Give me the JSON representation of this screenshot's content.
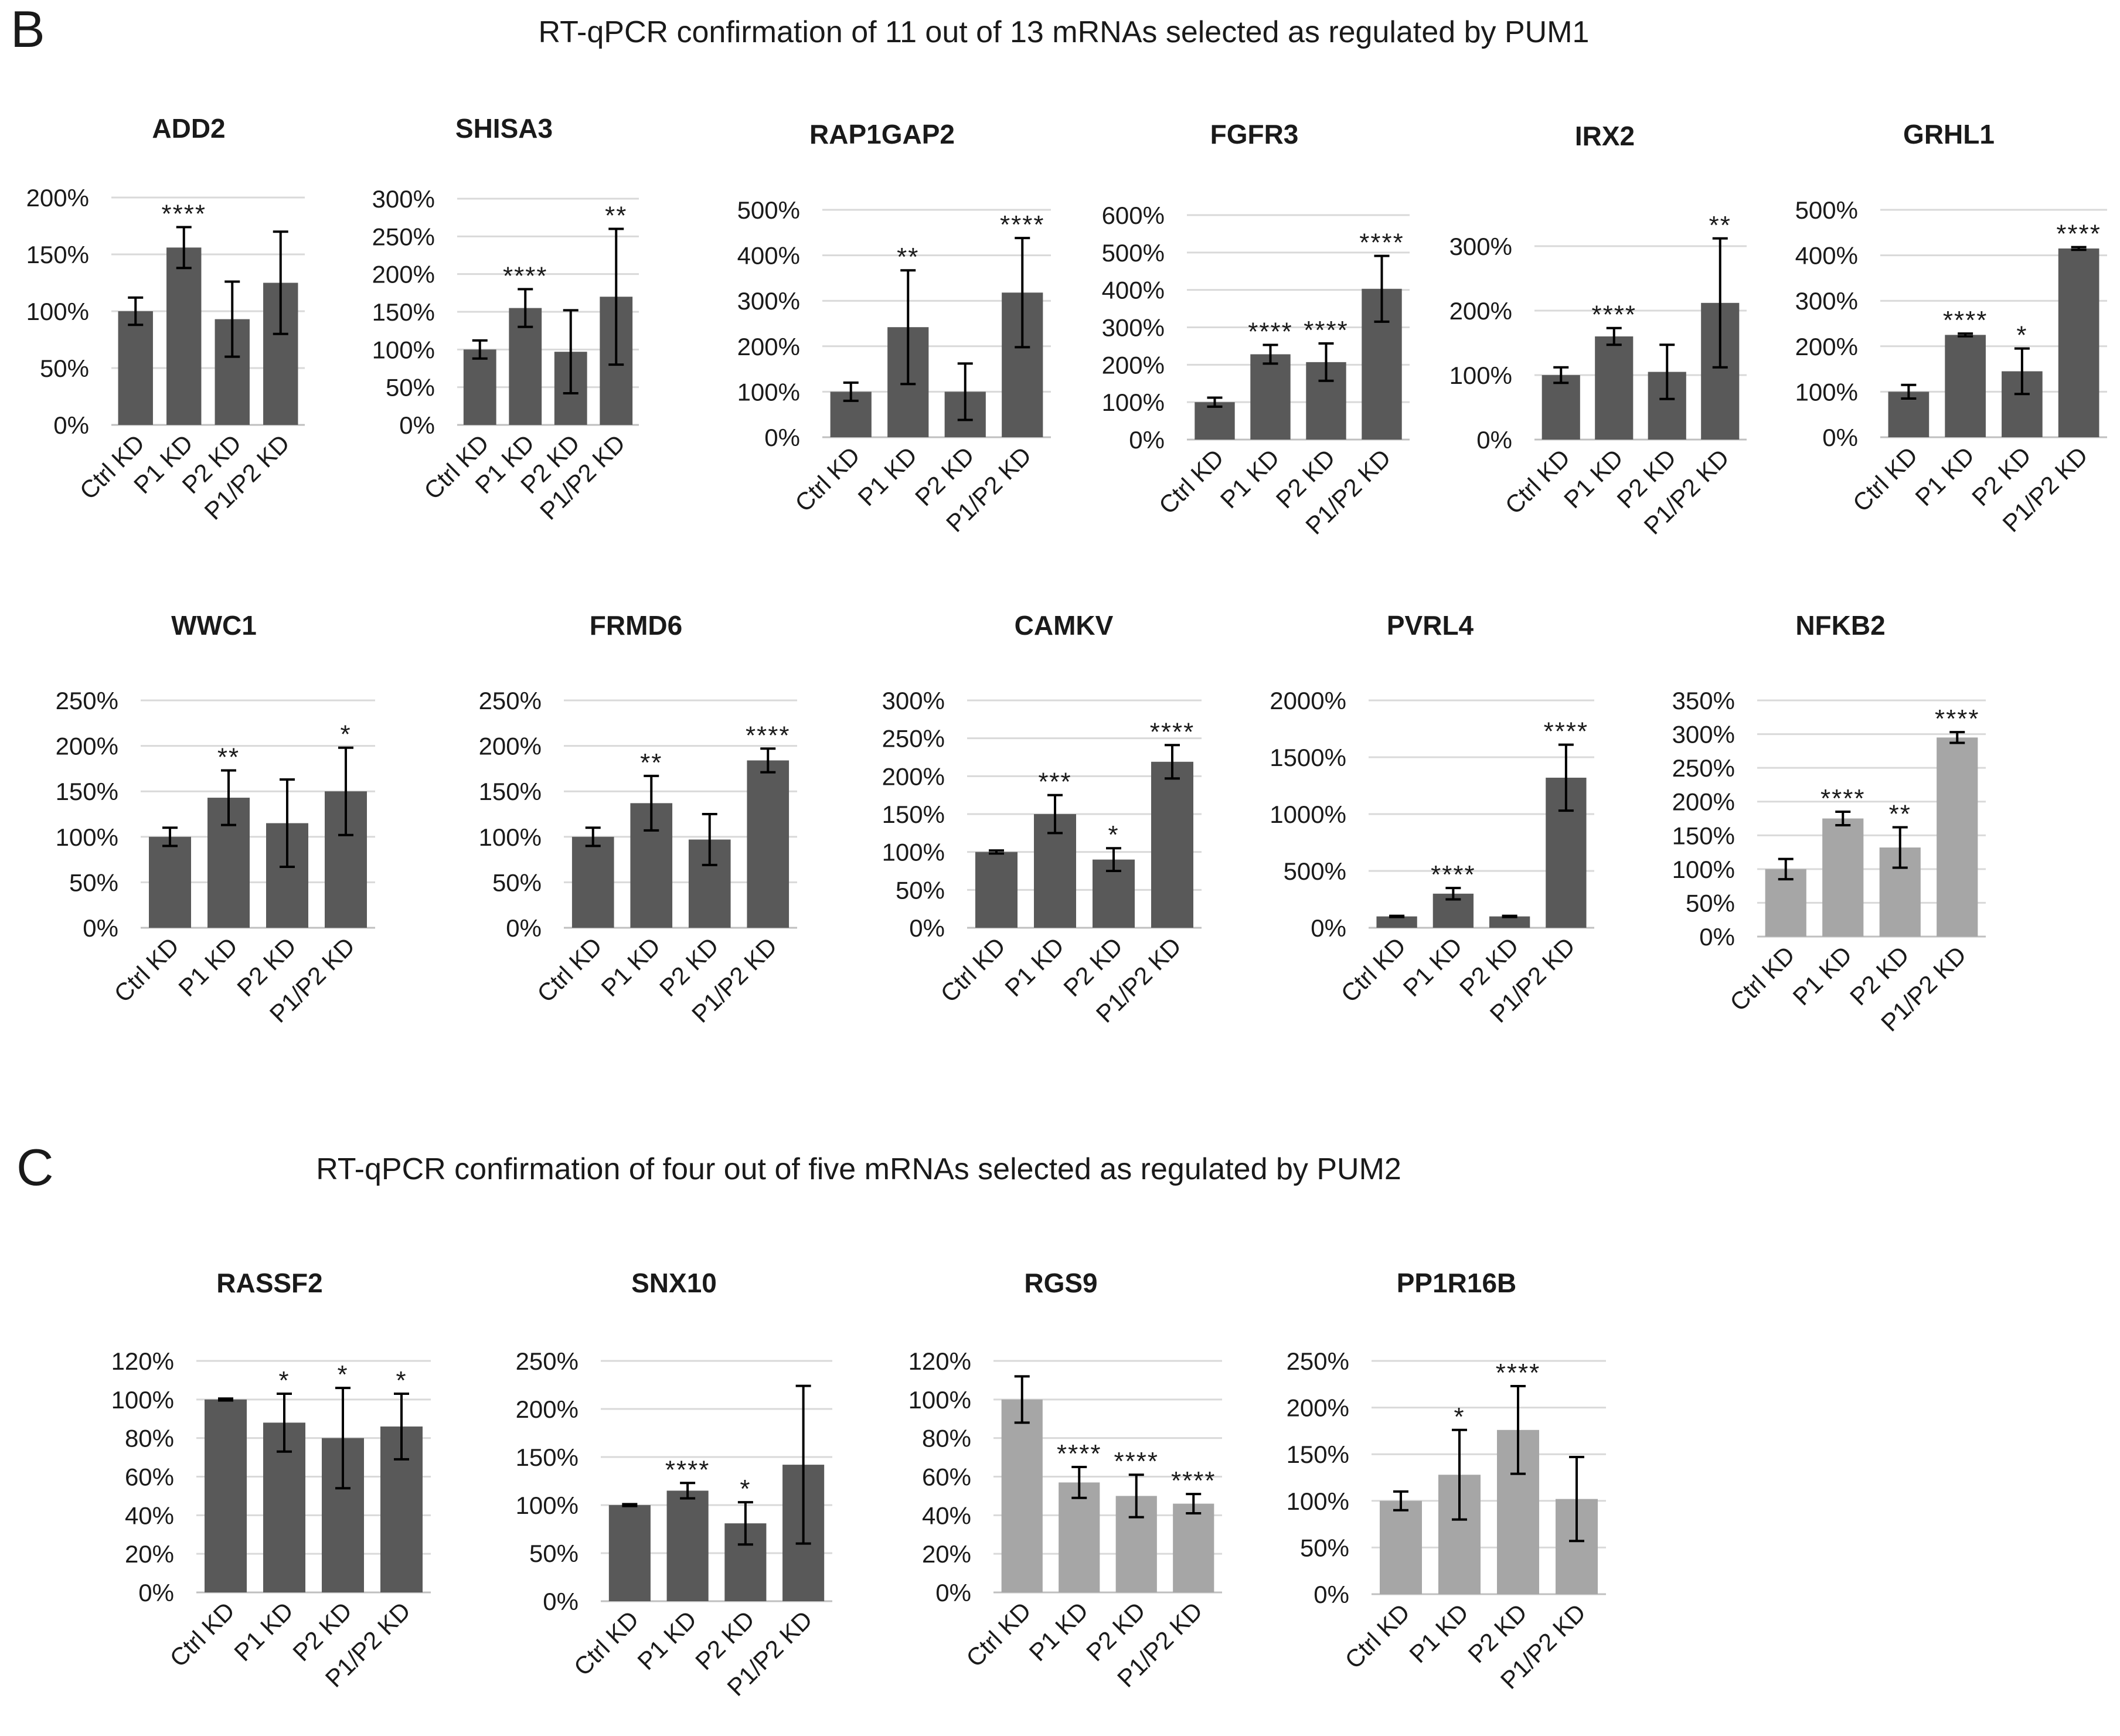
{
  "colors": {
    "dark_bar": "#595959",
    "light_bar": "#a6a6a6",
    "grid": "#d9d9d9",
    "axis": "#bfbfbf",
    "text": "#1a1a1a"
  },
  "categories": [
    "Ctrl KD",
    "P1 KD",
    "P2 KD",
    "P1/P2 KD"
  ],
  "panels": [
    {
      "letter": "B",
      "title": "RT-qPCR confirmation of 11 out of 13 mRNAs selected as regulated by PUM1"
    },
    {
      "letter": "C",
      "title": "RT-qPCR confirmation of four out of five mRNAs selected as regulated by PUM2"
    }
  ],
  "chart_data": [
    {
      "type": "bar",
      "panel": "B",
      "title": "ADD2",
      "color": "dark",
      "ylim": [
        0,
        200
      ],
      "ticks": [
        0,
        50,
        100,
        150,
        200
      ],
      "tick_labels": [
        "0%",
        "50%",
        "100%",
        "150%",
        "200%"
      ],
      "categories": [
        "Ctrl KD",
        "P1 KD",
        "P2 KD",
        "P1/P2 KD"
      ],
      "values": [
        100,
        156,
        93,
        125
      ],
      "errors": [
        12,
        18,
        33,
        45
      ],
      "sig": [
        "",
        "****",
        "",
        ""
      ]
    },
    {
      "type": "bar",
      "panel": "B",
      "title": "SHISA3",
      "color": "dark",
      "ylim": [
        0,
        300
      ],
      "ticks": [
        0,
        50,
        100,
        150,
        200,
        250,
        300
      ],
      "tick_labels": [
        "0%",
        "50%",
        "100%",
        "150%",
        "200%",
        "250%",
        "300%"
      ],
      "categories": [
        "Ctrl KD",
        "P1 KD",
        "P2 KD",
        "P1/P2 KD"
      ],
      "values": [
        100,
        155,
        97,
        170
      ],
      "errors": [
        12,
        25,
        55,
        90
      ],
      "sig": [
        "",
        "****",
        "",
        "**"
      ]
    },
    {
      "type": "bar",
      "panel": "B",
      "title": "RAP1GAP2",
      "color": "dark",
      "ylim": [
        0,
        500
      ],
      "ticks": [
        0,
        100,
        200,
        300,
        400,
        500
      ],
      "tick_labels": [
        "0%",
        "100%",
        "200%",
        "300%",
        "400%",
        "500%"
      ],
      "categories": [
        "Ctrl KD",
        "P1 KD",
        "P2 KD",
        "P1/P2 KD"
      ],
      "values": [
        100,
        242,
        100,
        318
      ],
      "errors": [
        20,
        125,
        62,
        120
      ],
      "sig": [
        "",
        "**",
        "",
        "****"
      ]
    },
    {
      "type": "bar",
      "panel": "B",
      "title": "FGFR3",
      "color": "dark",
      "ylim": [
        0,
        600
      ],
      "ticks": [
        0,
        100,
        200,
        300,
        400,
        500,
        600
      ],
      "tick_labels": [
        "0%",
        "100%",
        "200%",
        "300%",
        "400%",
        "500%",
        "600%"
      ],
      "categories": [
        "Ctrl KD",
        "P1 KD",
        "P2 KD",
        "P1/P2 KD"
      ],
      "values": [
        100,
        228,
        207,
        403
      ],
      "errors": [
        12,
        25,
        50,
        88
      ],
      "sig": [
        "",
        "****",
        "****",
        "****"
      ]
    },
    {
      "type": "bar",
      "panel": "B",
      "title": "IRX2",
      "color": "dark",
      "ylim": [
        0,
        300
      ],
      "ticks": [
        0,
        100,
        200,
        300
      ],
      "tick_labels": [
        "0%",
        "100%",
        "200%",
        "300%"
      ],
      "categories": [
        "Ctrl KD",
        "P1 KD",
        "P2 KD",
        "P1/P2 KD"
      ],
      "values": [
        100,
        160,
        105,
        212
      ],
      "errors": [
        12,
        13,
        42,
        100
      ],
      "sig": [
        "",
        "****",
        "",
        "**"
      ]
    },
    {
      "type": "bar",
      "panel": "B",
      "title": "GRHL1",
      "color": "dark",
      "ylim": [
        0,
        500
      ],
      "ticks": [
        0,
        100,
        200,
        300,
        400,
        500
      ],
      "tick_labels": [
        "0%",
        "100%",
        "200%",
        "300%",
        "400%",
        "500%"
      ],
      "categories": [
        "Ctrl KD",
        "P1 KD",
        "P2 KD",
        "P1/P2 KD"
      ],
      "values": [
        100,
        225,
        145,
        415
      ],
      "errors": [
        15,
        3,
        50,
        3
      ],
      "sig": [
        "",
        "****",
        "*",
        "****"
      ]
    },
    {
      "type": "bar",
      "panel": "B",
      "title": "WWC1",
      "color": "dark",
      "ylim": [
        0,
        250
      ],
      "ticks": [
        0,
        50,
        100,
        150,
        200,
        250
      ],
      "tick_labels": [
        "0%",
        "50%",
        "100%",
        "150%",
        "200%",
        "250%"
      ],
      "categories": [
        "Ctrl KD",
        "P1 KD",
        "P2 KD",
        "P1/P2 KD"
      ],
      "values": [
        100,
        143,
        115,
        150
      ],
      "errors": [
        10,
        30,
        48,
        48
      ],
      "sig": [
        "",
        "**",
        "",
        "*"
      ]
    },
    {
      "type": "bar",
      "panel": "B",
      "title": "FRMD6",
      "color": "dark",
      "ylim": [
        0,
        250
      ],
      "ticks": [
        0,
        50,
        100,
        150,
        200,
        250
      ],
      "tick_labels": [
        "0%",
        "50%",
        "100%",
        "150%",
        "200%",
        "250%"
      ],
      "categories": [
        "Ctrl KD",
        "P1 KD",
        "P2 KD",
        "P1/P2 KD"
      ],
      "values": [
        100,
        137,
        97,
        184
      ],
      "errors": [
        10,
        30,
        28,
        13
      ],
      "sig": [
        "",
        "**",
        "",
        "****"
      ]
    },
    {
      "type": "bar",
      "panel": "B",
      "title": "CAMKV",
      "color": "dark",
      "ylim": [
        0,
        300
      ],
      "ticks": [
        0,
        50,
        100,
        150,
        200,
        250,
        300
      ],
      "tick_labels": [
        "0%",
        "50%",
        "100%",
        "150%",
        "200%",
        "250%",
        "300%"
      ],
      "categories": [
        "Ctrl KD",
        "P1 KD",
        "P2 KD",
        "P1/P2 KD"
      ],
      "values": [
        100,
        150,
        90,
        219
      ],
      "errors": [
        2,
        25,
        15,
        22
      ],
      "sig": [
        "",
        "***",
        "*",
        "****"
      ]
    },
    {
      "type": "bar",
      "panel": "B",
      "title": "PVRL4",
      "color": "dark",
      "ylim": [
        0,
        2000
      ],
      "ticks": [
        0,
        500,
        1000,
        1500,
        2000
      ],
      "tick_labels": [
        "0%",
        "500%",
        "1000%",
        "1500%",
        "2000%"
      ],
      "categories": [
        "Ctrl KD",
        "P1 KD",
        "P2 KD",
        "P1/P2 KD"
      ],
      "values": [
        100,
        300,
        100,
        1320
      ],
      "errors": [
        5,
        50,
        5,
        290
      ],
      "sig": [
        "",
        "****",
        "",
        "****"
      ]
    },
    {
      "type": "bar",
      "panel": "B",
      "title": "NFKB2",
      "color": "light",
      "ylim": [
        0,
        350
      ],
      "ticks": [
        0,
        50,
        100,
        150,
        200,
        250,
        300,
        350
      ],
      "tick_labels": [
        "0%",
        "50%",
        "100%",
        "150%",
        "200%",
        "250%",
        "300%",
        "350%"
      ],
      "categories": [
        "Ctrl KD",
        "P1 KD",
        "P2 KD",
        "P1/P2 KD"
      ],
      "values": [
        100,
        175,
        132,
        295
      ],
      "errors": [
        15,
        10,
        30,
        8
      ],
      "sig": [
        "",
        "****",
        "**",
        "****"
      ]
    },
    {
      "type": "bar",
      "panel": "C",
      "title": "RASSF2",
      "color": "dark",
      "ylim": [
        0,
        120
      ],
      "ticks": [
        0,
        20,
        40,
        60,
        80,
        100,
        120
      ],
      "tick_labels": [
        "0%",
        "20%",
        "40%",
        "60%",
        "80%",
        "100%",
        "120%"
      ],
      "categories": [
        "Ctrl KD",
        "P1 KD",
        "P2 KD",
        "P1/P2 KD"
      ],
      "values": [
        100,
        88,
        80,
        86
      ],
      "errors": [
        0.5,
        15,
        26,
        17
      ],
      "sig": [
        "",
        "*",
        "*",
        "*"
      ]
    },
    {
      "type": "bar",
      "panel": "C",
      "title": "SNX10",
      "color": "dark",
      "ylim": [
        0,
        250
      ],
      "ticks": [
        0,
        50,
        100,
        150,
        200,
        250
      ],
      "tick_labels": [
        "0%",
        "50%",
        "100%",
        "150%",
        "200%",
        "250%"
      ],
      "categories": [
        "Ctrl KD",
        "P1 KD",
        "P2 KD",
        "P1/P2 KD"
      ],
      "values": [
        100,
        115,
        81,
        142
      ],
      "errors": [
        1,
        8,
        22,
        82
      ],
      "sig": [
        "",
        "****",
        "*",
        ""
      ]
    },
    {
      "type": "bar",
      "panel": "C",
      "title": "RGS9",
      "color": "light",
      "ylim": [
        0,
        120
      ],
      "ticks": [
        0,
        20,
        40,
        60,
        80,
        100,
        120
      ],
      "tick_labels": [
        "0%",
        "20%",
        "40%",
        "60%",
        "80%",
        "100%",
        "120%"
      ],
      "categories": [
        "Ctrl KD",
        "P1 KD",
        "P2 KD",
        "P1/P2 KD"
      ],
      "values": [
        100,
        57,
        50,
        46
      ],
      "errors": [
        12,
        8,
        11,
        5
      ],
      "sig": [
        "",
        "****",
        "****",
        "****"
      ]
    },
    {
      "type": "bar",
      "panel": "C",
      "title": "PP1R16B",
      "color": "light",
      "ylim": [
        0,
        250
      ],
      "ticks": [
        0,
        50,
        100,
        150,
        200,
        250
      ],
      "tick_labels": [
        "0%",
        "50%",
        "100%",
        "150%",
        "200%",
        "250%"
      ],
      "categories": [
        "Ctrl KD",
        "P1 KD",
        "P2 KD",
        "P1/P2 KD"
      ],
      "values": [
        100,
        128,
        176,
        102
      ],
      "errors": [
        10,
        48,
        47,
        45
      ],
      "sig": [
        "",
        "*",
        "****",
        ""
      ]
    }
  ]
}
